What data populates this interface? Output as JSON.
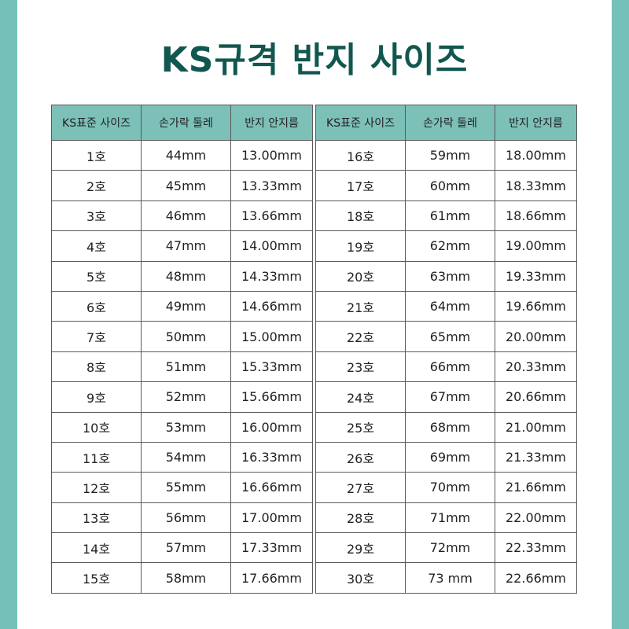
{
  "title": "KS규격 반지 사이즈",
  "colors": {
    "accent": "#74c1ba",
    "header_bg": "#7cc0b8",
    "title": "#12574f"
  },
  "headers": [
    "KS표준 사이즈",
    "손가락 둘레",
    "반지 안지름"
  ],
  "left_rows": [
    [
      "1호",
      "44mm",
      "13.00mm"
    ],
    [
      "2호",
      "45mm",
      "13.33mm"
    ],
    [
      "3호",
      "46mm",
      "13.66mm"
    ],
    [
      "4호",
      "47mm",
      "14.00mm"
    ],
    [
      "5호",
      "48mm",
      "14.33mm"
    ],
    [
      "6호",
      "49mm",
      "14.66mm"
    ],
    [
      "7호",
      "50mm",
      "15.00mm"
    ],
    [
      "8호",
      "51mm",
      "15.33mm"
    ],
    [
      "9호",
      "52mm",
      "15.66mm"
    ],
    [
      "10호",
      "53mm",
      "16.00mm"
    ],
    [
      "11호",
      "54mm",
      "16.33mm"
    ],
    [
      "12호",
      "55mm",
      "16.66mm"
    ],
    [
      "13호",
      "56mm",
      "17.00mm"
    ],
    [
      "14호",
      "57mm",
      "17.33mm"
    ],
    [
      "15호",
      "58mm",
      "17.66mm"
    ]
  ],
  "right_rows": [
    [
      "16호",
      "59mm",
      "18.00mm"
    ],
    [
      "17호",
      "60mm",
      "18.33mm"
    ],
    [
      "18호",
      "61mm",
      "18.66mm"
    ],
    [
      "19호",
      "62mm",
      "19.00mm"
    ],
    [
      "20호",
      "63mm",
      "19.33mm"
    ],
    [
      "21호",
      "64mm",
      "19.66mm"
    ],
    [
      "22호",
      "65mm",
      "20.00mm"
    ],
    [
      "23호",
      "66mm",
      "20.33mm"
    ],
    [
      "24호",
      "67mm",
      "20.66mm"
    ],
    [
      "25호",
      "68mm",
      "21.00mm"
    ],
    [
      "26호",
      "69mm",
      "21.33mm"
    ],
    [
      "27호",
      "70mm",
      "21.66mm"
    ],
    [
      "28호",
      "71mm",
      "22.00mm"
    ],
    [
      "29호",
      "72mm",
      "22.33mm"
    ],
    [
      "30호",
      "73 mm",
      "22.66mm"
    ]
  ]
}
